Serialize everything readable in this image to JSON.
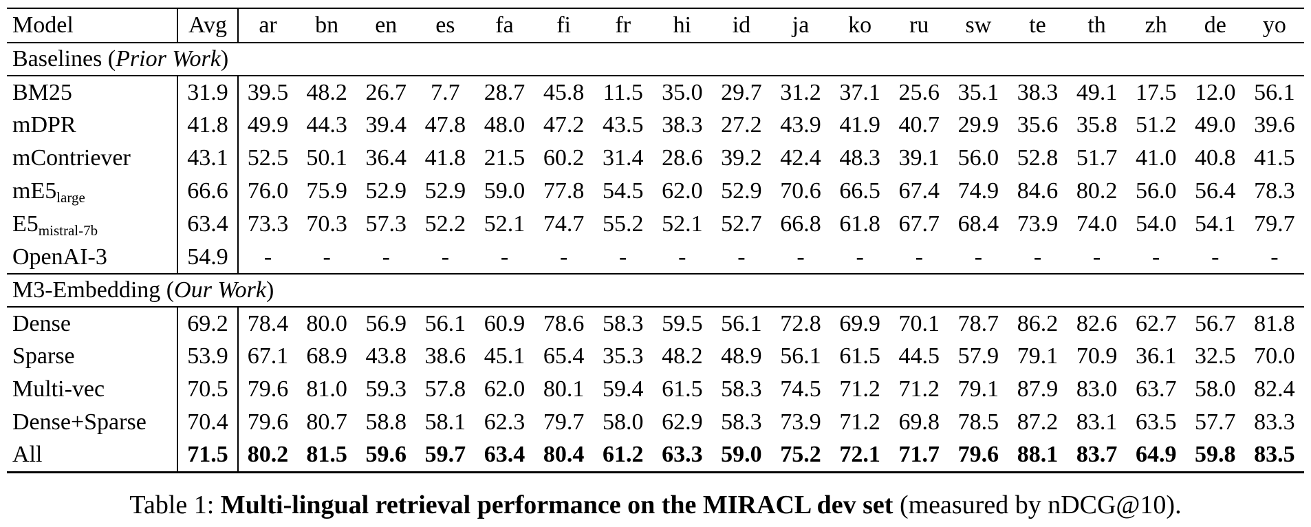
{
  "table": {
    "columns": [
      "Model",
      "Avg",
      "ar",
      "bn",
      "en",
      "es",
      "fa",
      "fi",
      "fr",
      "hi",
      "id",
      "ja",
      "ko",
      "ru",
      "sw",
      "te",
      "th",
      "zh",
      "de",
      "yo"
    ],
    "sections": [
      {
        "title": {
          "prefix": "Baselines (",
          "italic": "Prior Work",
          "suffix": ")"
        },
        "rows": [
          {
            "model": {
              "base": "BM25",
              "sub": ""
            },
            "avg": "31.9",
            "bold": false,
            "values": [
              "39.5",
              "48.2",
              "26.7",
              "7.7",
              "28.7",
              "45.8",
              "11.5",
              "35.0",
              "29.7",
              "31.2",
              "37.1",
              "25.6",
              "35.1",
              "38.3",
              "49.1",
              "17.5",
              "12.0",
              "56.1"
            ]
          },
          {
            "model": {
              "base": "mDPR",
              "sub": ""
            },
            "avg": "41.8",
            "bold": false,
            "values": [
              "49.9",
              "44.3",
              "39.4",
              "47.8",
              "48.0",
              "47.2",
              "43.5",
              "38.3",
              "27.2",
              "43.9",
              "41.9",
              "40.7",
              "29.9",
              "35.6",
              "35.8",
              "51.2",
              "49.0",
              "39.6"
            ]
          },
          {
            "model": {
              "base": "mContriever",
              "sub": ""
            },
            "avg": "43.1",
            "bold": false,
            "values": [
              "52.5",
              "50.1",
              "36.4",
              "41.8",
              "21.5",
              "60.2",
              "31.4",
              "28.6",
              "39.2",
              "42.4",
              "48.3",
              "39.1",
              "56.0",
              "52.8",
              "51.7",
              "41.0",
              "40.8",
              "41.5"
            ]
          },
          {
            "model": {
              "base": "mE5",
              "sub": "large"
            },
            "avg": "66.6",
            "bold": false,
            "values": [
              "76.0",
              "75.9",
              "52.9",
              "52.9",
              "59.0",
              "77.8",
              "54.5",
              "62.0",
              "52.9",
              "70.6",
              "66.5",
              "67.4",
              "74.9",
              "84.6",
              "80.2",
              "56.0",
              "56.4",
              "78.3"
            ]
          },
          {
            "model": {
              "base": "E5",
              "sub": "mistral-7b"
            },
            "avg": "63.4",
            "bold": false,
            "values": [
              "73.3",
              "70.3",
              "57.3",
              "52.2",
              "52.1",
              "74.7",
              "55.2",
              "52.1",
              "52.7",
              "66.8",
              "61.8",
              "67.7",
              "68.4",
              "73.9",
              "74.0",
              "54.0",
              "54.1",
              "79.7"
            ]
          },
          {
            "model": {
              "base": "OpenAI-3",
              "sub": ""
            },
            "avg": "54.9",
            "bold": false,
            "values": [
              "-",
              "-",
              "-",
              "-",
              "-",
              "-",
              "-",
              "-",
              "-",
              "-",
              "-",
              "-",
              "-",
              "-",
              "-",
              "-",
              "-",
              "-"
            ]
          }
        ]
      },
      {
        "title": {
          "prefix": "M3-Embedding (",
          "italic": "Our Work",
          "suffix": ")"
        },
        "rows": [
          {
            "model": {
              "base": "Dense",
              "sub": ""
            },
            "avg": "69.2",
            "bold": false,
            "values": [
              "78.4",
              "80.0",
              "56.9",
              "56.1",
              "60.9",
              "78.6",
              "58.3",
              "59.5",
              "56.1",
              "72.8",
              "69.9",
              "70.1",
              "78.7",
              "86.2",
              "82.6",
              "62.7",
              "56.7",
              "81.8"
            ]
          },
          {
            "model": {
              "base": "Sparse",
              "sub": ""
            },
            "avg": "53.9",
            "bold": false,
            "values": [
              "67.1",
              "68.9",
              "43.8",
              "38.6",
              "45.1",
              "65.4",
              "35.3",
              "48.2",
              "48.9",
              "56.1",
              "61.5",
              "44.5",
              "57.9",
              "79.1",
              "70.9",
              "36.1",
              "32.5",
              "70.0"
            ]
          },
          {
            "model": {
              "base": "Multi-vec",
              "sub": ""
            },
            "avg": "70.5",
            "bold": false,
            "values": [
              "79.6",
              "81.0",
              "59.3",
              "57.8",
              "62.0",
              "80.1",
              "59.4",
              "61.5",
              "58.3",
              "74.5",
              "71.2",
              "71.2",
              "79.1",
              "87.9",
              "83.0",
              "63.7",
              "58.0",
              "82.4"
            ]
          },
          {
            "model": {
              "base": "Dense+Sparse",
              "sub": ""
            },
            "avg": "70.4",
            "bold": false,
            "values": [
              "79.6",
              "80.7",
              "58.8",
              "58.1",
              "62.3",
              "79.7",
              "58.0",
              "62.9",
              "58.3",
              "73.9",
              "71.2",
              "69.8",
              "78.5",
              "87.2",
              "83.1",
              "63.5",
              "57.7",
              "83.3"
            ]
          },
          {
            "model": {
              "base": "All",
              "sub": ""
            },
            "avg": "71.5",
            "bold": true,
            "values": [
              "80.2",
              "81.5",
              "59.6",
              "59.7",
              "63.4",
              "80.4",
              "61.2",
              "63.3",
              "59.0",
              "75.2",
              "72.1",
              "71.7",
              "79.6",
              "88.1",
              "83.7",
              "64.9",
              "59.8",
              "83.5"
            ]
          }
        ]
      }
    ]
  },
  "caption": {
    "prefix": "Table 1: ",
    "bold": "Multi-lingual retrieval performance on the MIRACL dev set",
    "suffix": " (measured by nDCG@10)."
  }
}
